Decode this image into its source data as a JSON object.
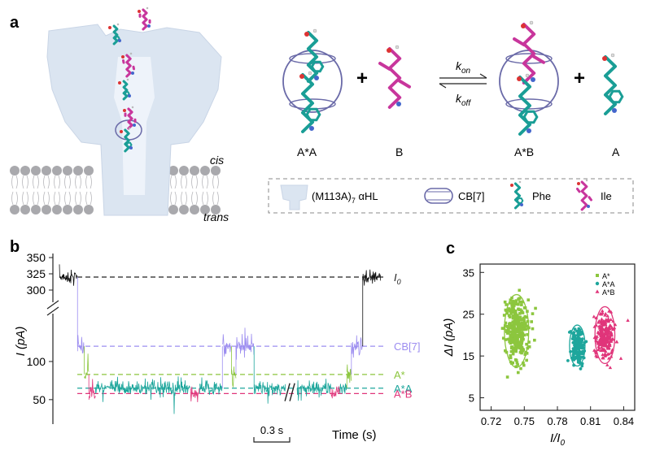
{
  "panel_labels": {
    "a": "a",
    "b": "b",
    "c": "c"
  },
  "panel_a": {
    "membrane": {
      "cis": "cis",
      "trans": "trans"
    },
    "reaction": {
      "k_on": "k",
      "k_on_sub": "on",
      "k_off": "k",
      "k_off_sub": "off",
      "plus1": "+",
      "plus2": "+"
    },
    "species_labels": [
      "A*A",
      "B",
      "A*B",
      "A"
    ],
    "legend": {
      "pore": "(M113A)",
      "pore_sub": "7",
      "pore_suffix": " αHL",
      "cb7": "CB[7]",
      "phe": "Phe",
      "ile": "Ile"
    }
  },
  "colors": {
    "pore": "#dbe5f1",
    "cb7": "#6a6aa8",
    "phe": "#1a9e96",
    "ile": "#c8369c",
    "a_star": "#8cc63e",
    "a_star_a": "#1ea69c",
    "a_star_b": "#e0357a",
    "cb7_level": "#9c8df0",
    "trace": "#111111"
  },
  "chart_data": [
    {
      "type": "line",
      "panel": "b",
      "ylabel": "I (pA)",
      "xlabel": "Time (s)",
      "scale_bar": "0.3 s",
      "y_ticks_upper": [
        300,
        325,
        350
      ],
      "y_ticks_lower": [
        50,
        100
      ],
      "upper_ylim": [
        300,
        350
      ],
      "lower_ylim": [
        20,
        150
      ],
      "levels": [
        {
          "name": "I",
          "sub": "0",
          "value": 320
        },
        {
          "name": "CB[7]",
          "value": 120
        },
        {
          "name": "A*",
          "value": 83
        },
        {
          "name": "A*A",
          "value": 65
        },
        {
          "name": "A*B",
          "value": 58
        }
      ],
      "segments": [
        {
          "state": "I0",
          "t": [
            0.0,
            0.08
          ]
        },
        {
          "state": "CB[7]",
          "t": [
            0.08,
            0.11
          ]
        },
        {
          "state": "A*",
          "t": [
            0.11,
            0.13
          ]
        },
        {
          "state": "A*B",
          "t": [
            0.13,
            0.16
          ]
        },
        {
          "state": "A*A",
          "t": [
            0.16,
            0.58
          ]
        },
        {
          "state": "A*B",
          "t": [
            0.58,
            0.62
          ]
        },
        {
          "state": "A*A",
          "t": [
            0.62,
            0.72
          ]
        },
        {
          "state": "CB[7]",
          "t": [
            0.72,
            0.76
          ]
        },
        {
          "state": "A*",
          "t": [
            0.76,
            0.78
          ]
        },
        {
          "state": "CB[7]",
          "t": [
            0.78,
            0.86
          ]
        },
        {
          "state": "A*A",
          "t": [
            0.86,
            1.0
          ]
        },
        {
          "state": "A*A",
          "t": [
            1.05,
            1.2
          ]
        },
        {
          "state": "A*B",
          "t": [
            1.2,
            1.24
          ]
        },
        {
          "state": "A*A",
          "t": [
            1.24,
            1.27
          ]
        },
        {
          "state": "A*",
          "t": [
            1.27,
            1.29
          ]
        },
        {
          "state": "CB[7]",
          "t": [
            1.29,
            1.34
          ]
        },
        {
          "state": "I0",
          "t": [
            1.34,
            1.42
          ]
        }
      ]
    },
    {
      "type": "scatter",
      "panel": "c",
      "xlabel": "I/I",
      "xlabel_sub": "0",
      "ylabel": "ΔI (pA)",
      "xlim": [
        0.71,
        0.85
      ],
      "ylim": [
        2,
        37
      ],
      "x_ticks": [
        "0.72",
        "0.75",
        "0.78",
        "0.81",
        "0.84"
      ],
      "y_ticks": [
        "5",
        "15",
        "25",
        "35"
      ],
      "legend_position": "top-right",
      "series": [
        {
          "name": "A*",
          "cx": 0.743,
          "cy": 21.0,
          "sx": 0.005,
          "sy": 3.6,
          "n": 320,
          "ellipse": {
            "rx": 0.011,
            "ry": 8.7
          }
        },
        {
          "name": "A*A",
          "cx": 0.798,
          "cy": 17.5,
          "sx": 0.003,
          "sy": 2.0,
          "n": 170,
          "ellipse": {
            "rx": 0.007,
            "ry": 4.9
          }
        },
        {
          "name": "A*B",
          "cx": 0.823,
          "cy": 20.0,
          "sx": 0.004,
          "sy": 2.6,
          "n": 240,
          "ellipse": {
            "rx": 0.009,
            "ry": 6.8
          }
        }
      ]
    }
  ]
}
